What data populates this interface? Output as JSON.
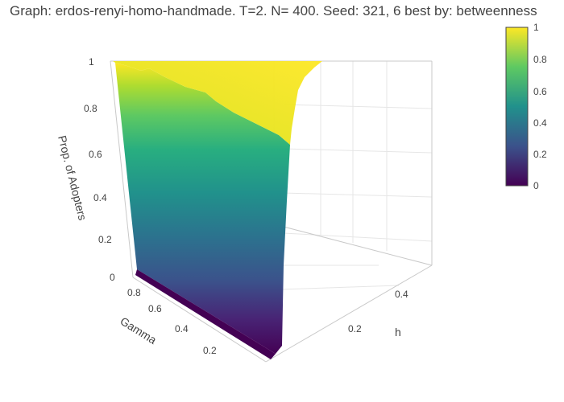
{
  "chart_data": {
    "type": "surface",
    "title": "Graph: erdos-renyi-homo-handmade. T=2. N= 400. Seed: 321, 6 best by: betweenness",
    "xlabel": "Gamma",
    "ylabel": "h",
    "zlabel": "Prop. of Adopters",
    "xlim": [
      0,
      1
    ],
    "ylim": [
      0,
      0.5
    ],
    "zlim": [
      0,
      1
    ],
    "x_ticks": [
      "0.2",
      "0.4",
      "0.6",
      "0.8"
    ],
    "y_ticks": [
      "0.2",
      "0.4"
    ],
    "z_ticks": [
      "0",
      "0.2",
      "0.4",
      "0.6",
      "0.8",
      "1"
    ],
    "colorscale": "viridis",
    "colorscale_colors": [
      "#440154",
      "#3b528b",
      "#21918c",
      "#5ec962",
      "#fde725"
    ],
    "colorbar": {
      "range": [
        0,
        1
      ],
      "ticks": [
        "0",
        "0.2",
        "0.4",
        "0.6",
        "0.8",
        "1"
      ]
    },
    "surface_description_values": {
      "gamma": [
        0.0,
        0.1,
        0.2,
        0.3,
        0.4,
        0.5,
        0.6,
        0.7,
        0.8,
        0.9,
        1.0
      ],
      "adopters_at_h_min": [
        0.02,
        0.08,
        0.17,
        0.28,
        0.4,
        0.52,
        0.63,
        0.74,
        0.84,
        0.93,
        1.0
      ],
      "adopters_for_h_above_0.05": 1.0
    }
  }
}
